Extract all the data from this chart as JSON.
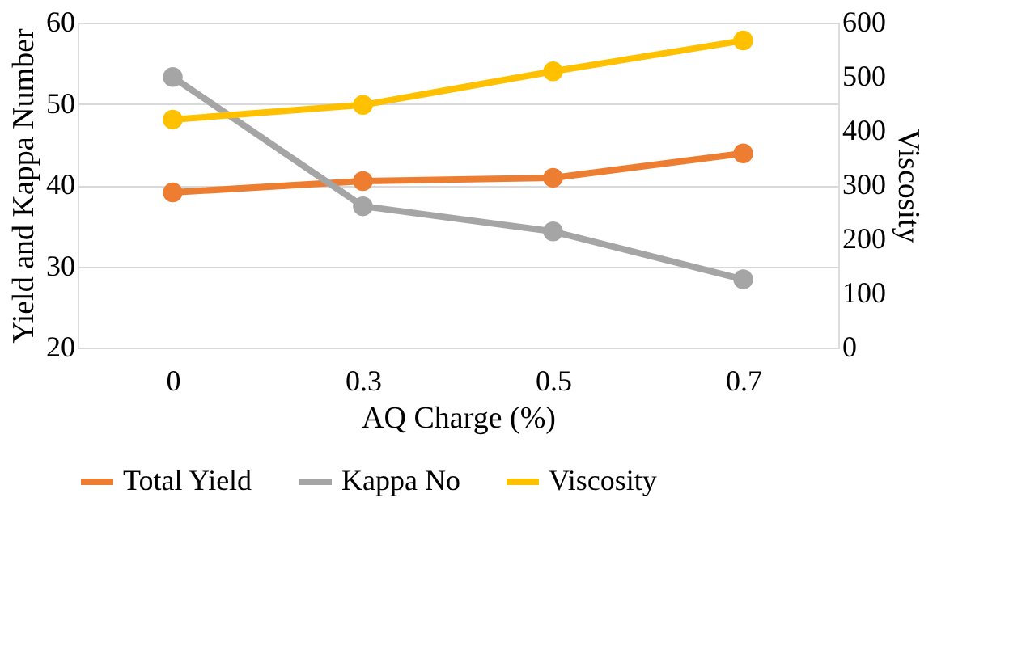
{
  "chart_data": {
    "type": "line",
    "xlabel": "AQ Charge (%)",
    "ylabel": "Yield and Kappa Number",
    "y2label": "Viscosity",
    "categories": [
      "0",
      "0.3",
      "0.5",
      "0.7"
    ],
    "series": [
      {
        "name": "Total Yield",
        "color": "#ed7d31",
        "values": [
          39.1,
          40.5,
          40.9,
          43.9
        ]
      },
      {
        "name": "Kappa No",
        "color": "#a5a5a5",
        "values": [
          53.3,
          37.4,
          34.3,
          28.4
        ]
      },
      {
        "name": "Viscosity",
        "color": "#ffc000",
        "values": [
          421,
          448,
          510,
          567
        ],
        "axis": "y2"
      }
    ],
    "ylim": [
      20,
      60
    ],
    "yticks": [
      20,
      30,
      40,
      50,
      60
    ],
    "y2lim": [
      0,
      600
    ],
    "y2ticks": [
      0,
      100,
      200,
      300,
      400,
      500,
      600
    ],
    "grid": "y",
    "legend": "bottom",
    "marker": "circle",
    "line_style": "solid"
  }
}
